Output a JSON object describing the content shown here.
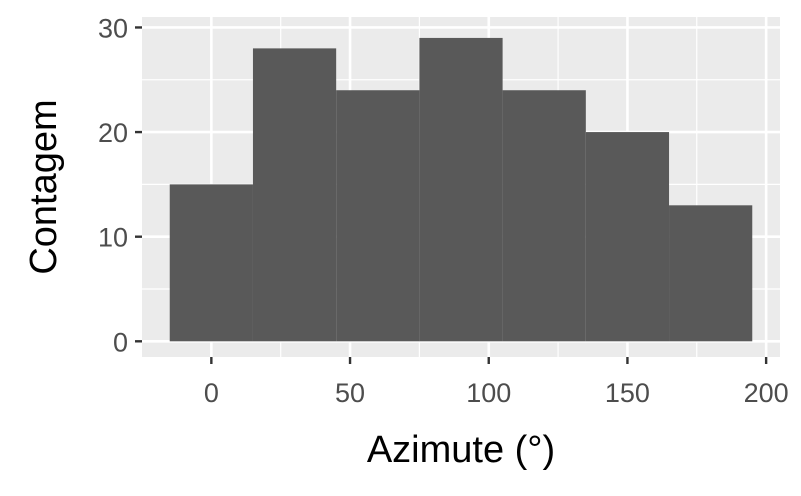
{
  "colors": {
    "panel_background": "#ebebeb",
    "grid": "#ffffff",
    "bar_fill": "#595959",
    "tick": "#333333",
    "tick_label": "#4d4d4d"
  },
  "chart_data": {
    "type": "bar",
    "title": "",
    "xlabel": "Azimute (°)",
    "ylabel": "Contagem",
    "xlim": [
      -25,
      205
    ],
    "ylim": [
      -1.5,
      31
    ],
    "x_ticks": [
      0,
      50,
      100,
      150,
      200
    ],
    "y_ticks": [
      0,
      10,
      20,
      30
    ],
    "grid": true,
    "legend": "none",
    "bins": [
      {
        "start": -15,
        "end": 15,
        "count": 15
      },
      {
        "start": 15,
        "end": 45,
        "count": 28
      },
      {
        "start": 45,
        "end": 75,
        "count": 24
      },
      {
        "start": 75,
        "end": 105,
        "count": 29
      },
      {
        "start": 105,
        "end": 135,
        "count": 24
      },
      {
        "start": 135,
        "end": 165,
        "count": 20
      },
      {
        "start": 165,
        "end": 195,
        "count": 13
      }
    ]
  }
}
